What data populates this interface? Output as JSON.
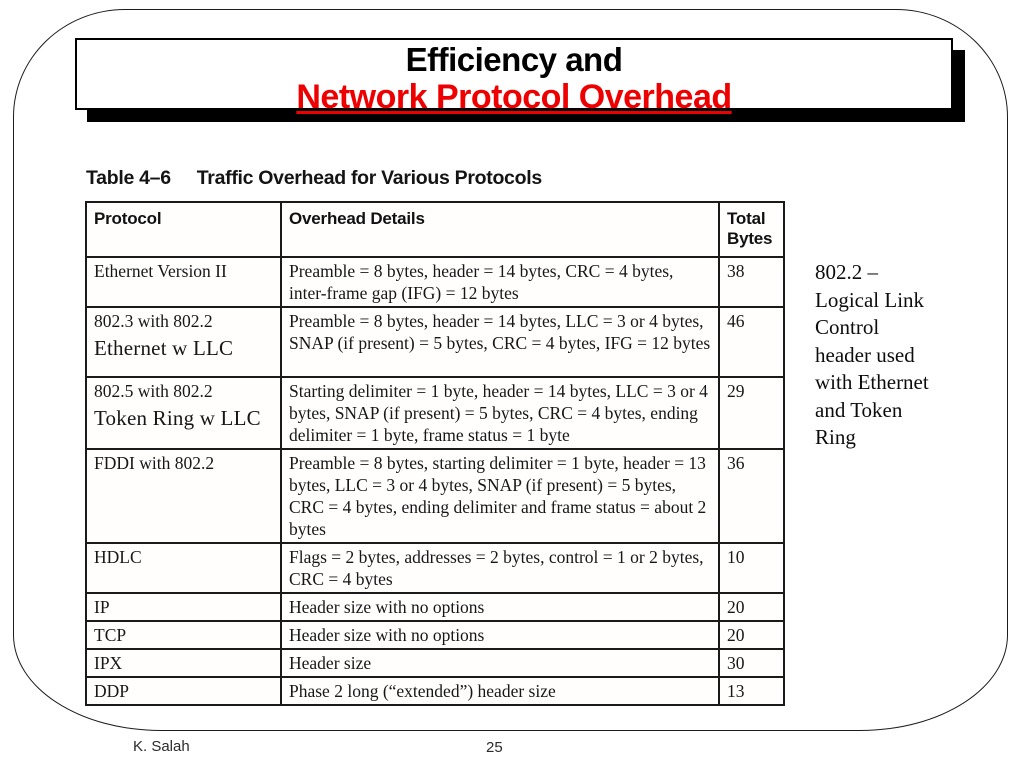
{
  "title": {
    "line1": "Efficiency and",
    "line2": "Network Protocol Overhead",
    "line2_color": "#ee0000"
  },
  "caption": {
    "label": "Table 4–6",
    "text": "Traffic Overhead for Various Protocols"
  },
  "table": {
    "headers": [
      "Protocol",
      "Overhead Details",
      "Total Bytes"
    ],
    "rows": [
      {
        "protocol": "Ethernet Version II",
        "protocol_sub": "",
        "details": "Preamble = 8 bytes, header = 14 bytes, CRC = 4 bytes, inter-frame gap (IFG) = 12 bytes",
        "total_bytes": "38"
      },
      {
        "protocol": "802.3 with 802.2",
        "protocol_sub": "Ethernet w LLC",
        "details": "Preamble = 8 bytes, header = 14 bytes, LLC = 3 or 4 bytes, SNAP (if present) = 5 bytes, CRC = 4 bytes, IFG = 12 bytes",
        "total_bytes": "46"
      },
      {
        "protocol": "802.5 with 802.2",
        "protocol_sub": "Token Ring w LLC",
        "details": "Starting delimiter = 1 byte, header = 14 bytes, LLC = 3 or 4 bytes, SNAP (if present) = 5 bytes, CRC = 4 bytes, ending delimiter = 1 byte, frame status = 1 byte",
        "total_bytes": "29"
      },
      {
        "protocol": "FDDI with 802.2",
        "protocol_sub": "",
        "details": "Preamble = 8 bytes, starting delimiter = 1 byte, header = 13 bytes, LLC = 3 or 4 bytes, SNAP (if present) = 5 bytes, CRC = 4 bytes, ending delimiter and frame status = about 2 bytes",
        "total_bytes": "36"
      },
      {
        "protocol": "HDLC",
        "protocol_sub": "",
        "details": "Flags = 2 bytes, addresses = 2 bytes, control = 1 or 2 bytes, CRC = 4 bytes",
        "total_bytes": "10"
      },
      {
        "protocol": "IP",
        "protocol_sub": "",
        "details": "Header size with no options",
        "total_bytes": "20"
      },
      {
        "protocol": "TCP",
        "protocol_sub": "",
        "details": "Header size with no options",
        "total_bytes": "20"
      },
      {
        "protocol": "IPX",
        "protocol_sub": "",
        "details": "Header size",
        "total_bytes": "30"
      },
      {
        "protocol": "DDP",
        "protocol_sub": "",
        "details": "Phase 2 long (“extended”) header size",
        "total_bytes": "13"
      }
    ]
  },
  "side_note": {
    "text": "802.2 –\nLogical Link\nControl\nheader used\nwith Ethernet\nand Token\nRing"
  },
  "footer": {
    "author": "K. Salah",
    "page_number": "25"
  }
}
